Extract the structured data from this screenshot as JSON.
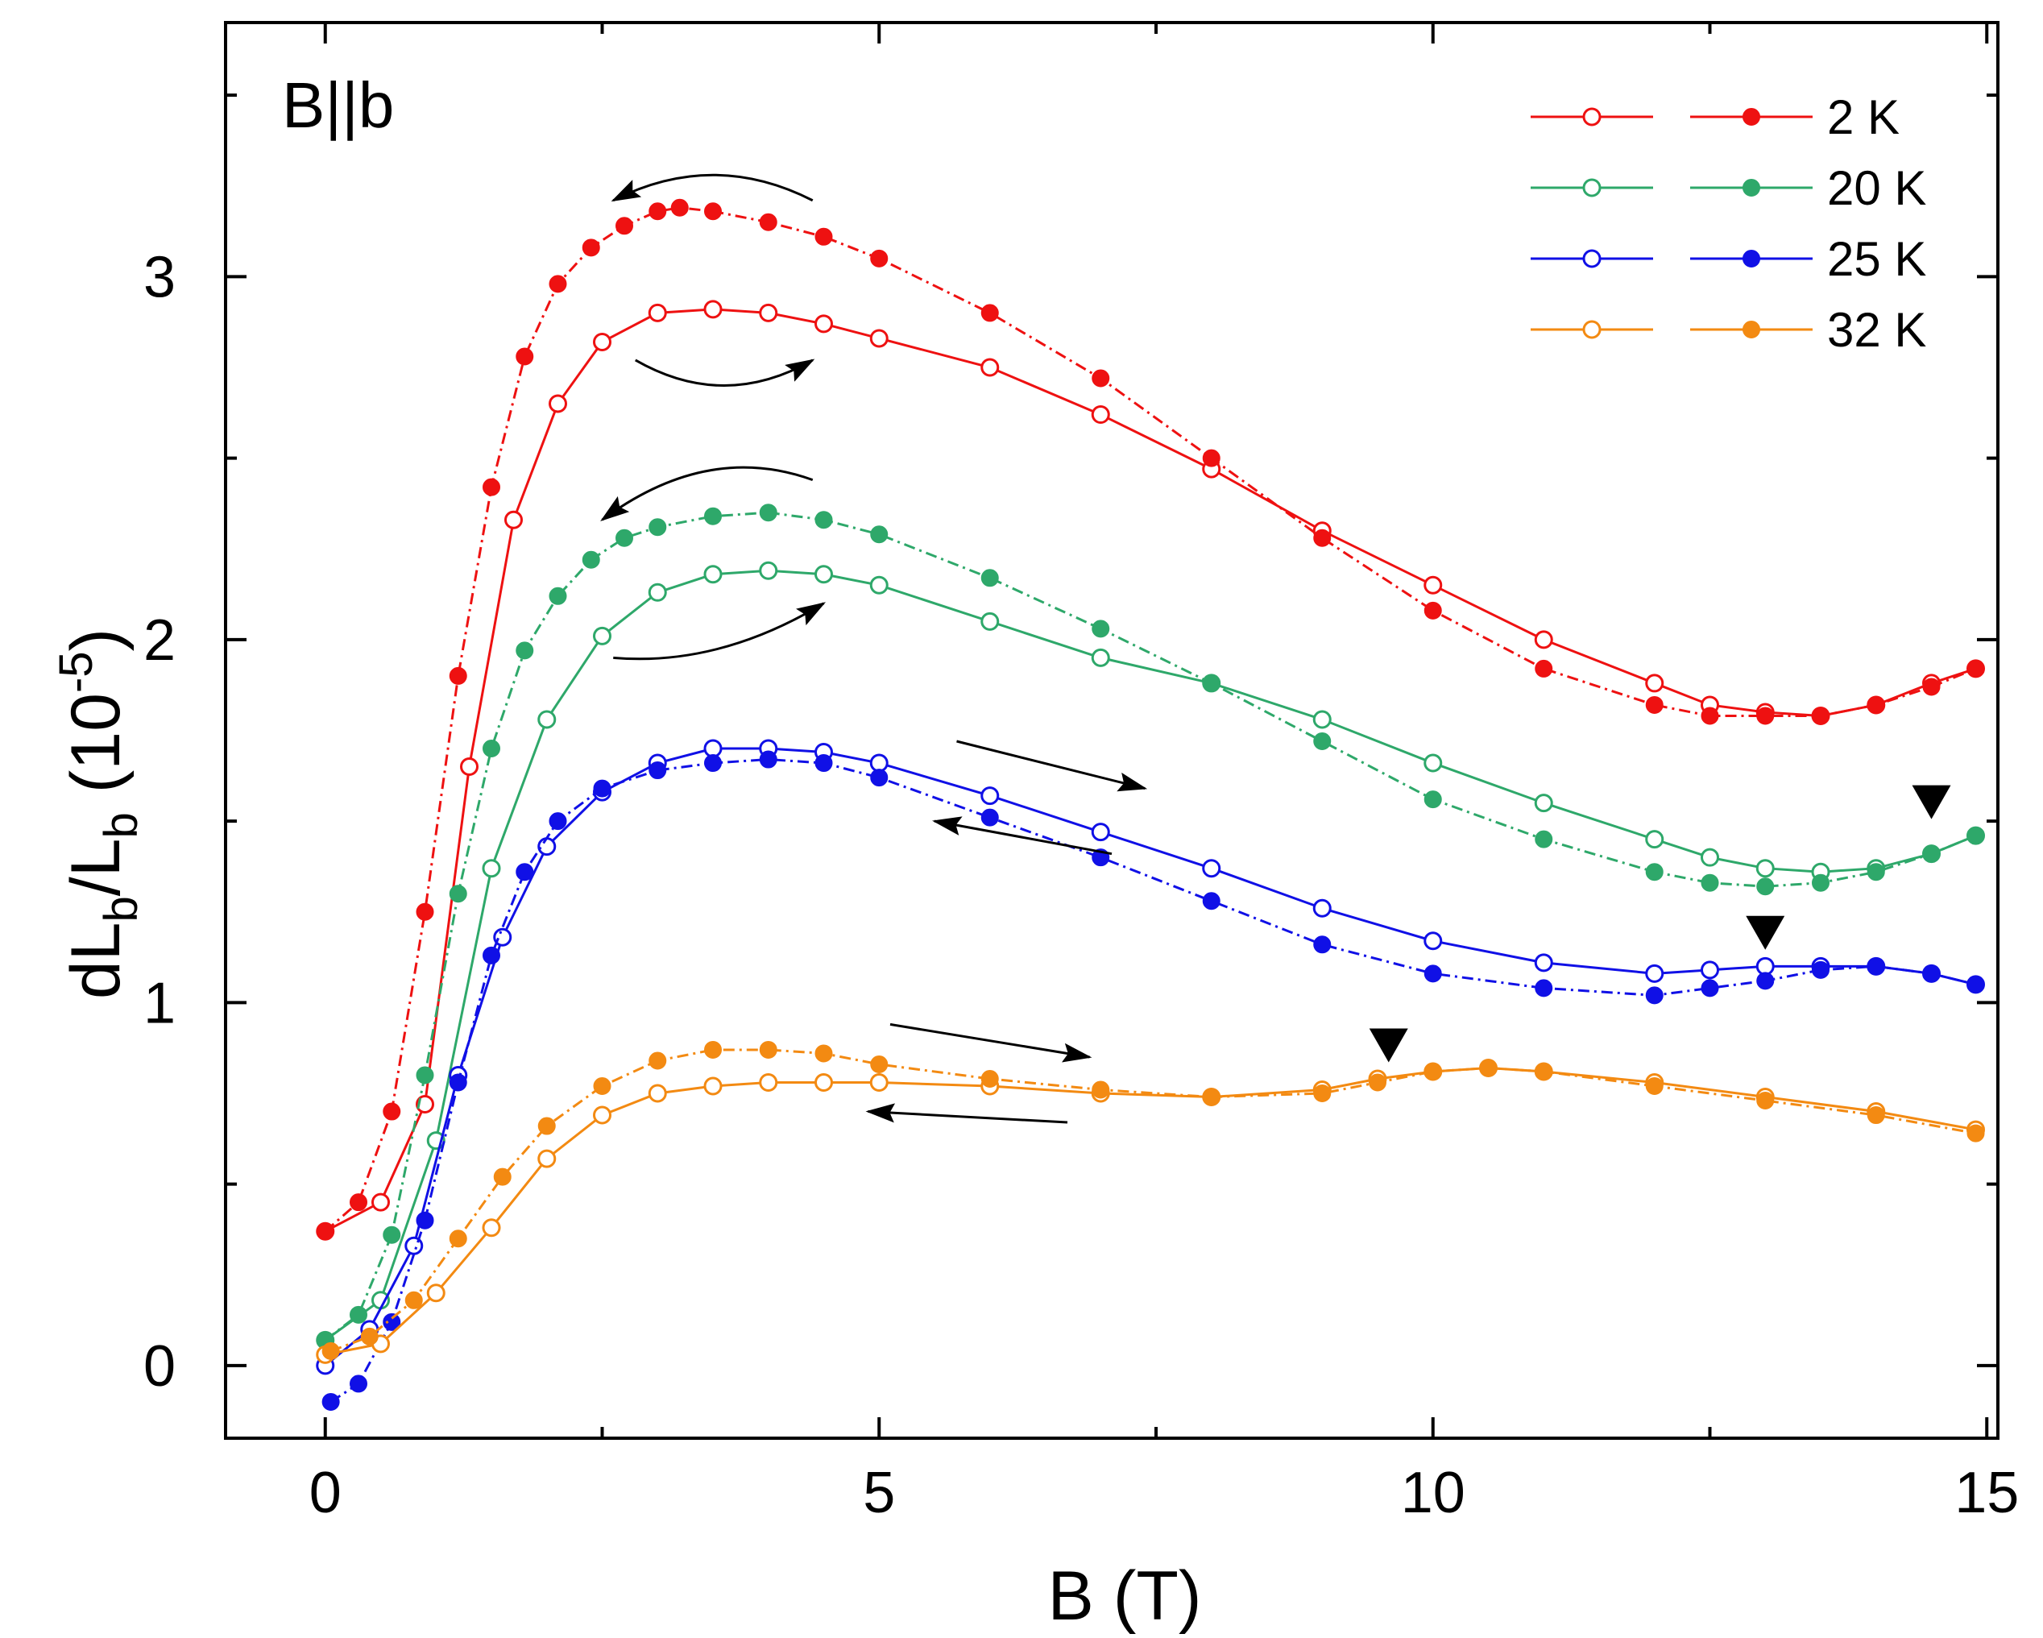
{
  "chart_data": {
    "type": "scatter",
    "title": "",
    "panel_label": "B||b",
    "xlabel": "B (T)",
    "ylabel": {
      "base": "dL",
      "sub1": "b",
      "mid": "/L",
      "sub2": "b",
      "unit_prefix": " (10",
      "unit_exp": "-5",
      "unit_suffix": ")"
    },
    "xlim": [
      -0.9,
      15.1
    ],
    "ylim": [
      -0.2,
      3.7
    ],
    "x_ticks": [
      0,
      5,
      10,
      15
    ],
    "x_tick_labels": [
      "0",
      "5",
      "10",
      "15"
    ],
    "y_ticks": [
      0,
      1,
      2,
      3
    ],
    "y_tick_labels": [
      "0",
      "1",
      "2",
      "3"
    ],
    "grid": false,
    "legend_position": "top-right",
    "series": [
      {
        "name": "2 K",
        "color": "#ee1111",
        "sweep": "up",
        "marker": "open",
        "x": [
          0,
          0.5,
          0.9,
          1.3,
          1.7,
          2.1,
          2.5,
          3,
          3.5,
          4,
          4.5,
          5,
          6,
          7,
          8,
          9,
          10,
          11,
          12,
          12.5,
          13,
          13.5,
          14,
          14.5,
          14.9
        ],
        "y": [
          0.37,
          0.45,
          0.72,
          1.65,
          2.33,
          2.65,
          2.82,
          2.9,
          2.91,
          2.9,
          2.87,
          2.83,
          2.75,
          2.62,
          2.47,
          2.3,
          2.15,
          2.0,
          1.88,
          1.82,
          1.8,
          1.79,
          1.82,
          1.88,
          1.92
        ]
      },
      {
        "name": "2 K",
        "color": "#ee1111",
        "sweep": "down",
        "marker": "filled",
        "x": [
          0,
          0.3,
          0.6,
          0.9,
          1.2,
          1.5,
          1.8,
          2.1,
          2.4,
          2.7,
          3,
          3.2,
          3.5,
          4,
          4.5,
          5,
          6,
          7,
          8,
          9,
          10,
          11,
          12,
          12.5,
          13,
          13.5,
          14,
          14.5,
          14.9
        ],
        "y": [
          0.37,
          0.45,
          0.7,
          1.25,
          1.9,
          2.42,
          2.78,
          2.98,
          3.08,
          3.14,
          3.18,
          3.19,
          3.18,
          3.15,
          3.11,
          3.05,
          2.9,
          2.72,
          2.5,
          2.28,
          2.08,
          1.92,
          1.82,
          1.79,
          1.79,
          1.79,
          1.82,
          1.87,
          1.92
        ]
      },
      {
        "name": "20 K",
        "color": "#2ea86a",
        "sweep": "up",
        "marker": "open",
        "x": [
          0,
          0.5,
          1,
          1.5,
          2,
          2.5,
          3,
          3.5,
          4,
          4.5,
          5,
          6,
          7,
          8,
          9,
          10,
          11,
          12,
          12.5,
          13,
          13.5,
          14,
          14.5,
          14.9
        ],
        "y": [
          0.07,
          0.18,
          0.62,
          1.37,
          1.78,
          2.01,
          2.13,
          2.18,
          2.19,
          2.18,
          2.15,
          2.05,
          1.95,
          1.88,
          1.78,
          1.66,
          1.55,
          1.45,
          1.4,
          1.37,
          1.36,
          1.37,
          1.41,
          1.46
        ]
      },
      {
        "name": "20 K",
        "color": "#2ea86a",
        "sweep": "down",
        "marker": "filled",
        "x": [
          0,
          0.3,
          0.6,
          0.9,
          1.2,
          1.5,
          1.8,
          2.1,
          2.4,
          2.7,
          3,
          3.5,
          4,
          4.5,
          5,
          6,
          7,
          8,
          9,
          10,
          11,
          12,
          12.5,
          13,
          13.5,
          14,
          14.5,
          14.9
        ],
        "y": [
          0.07,
          0.14,
          0.36,
          0.8,
          1.3,
          1.7,
          1.97,
          2.12,
          2.22,
          2.28,
          2.31,
          2.34,
          2.35,
          2.33,
          2.29,
          2.17,
          2.03,
          1.88,
          1.72,
          1.56,
          1.45,
          1.36,
          1.33,
          1.32,
          1.33,
          1.36,
          1.41,
          1.46
        ]
      },
      {
        "name": "25 K",
        "color": "#1010e6",
        "sweep": "up",
        "marker": "open",
        "x": [
          0,
          0.4,
          0.8,
          1.2,
          1.6,
          2,
          2.5,
          3,
          3.5,
          4,
          4.5,
          5,
          6,
          7,
          8,
          9,
          10,
          11,
          12,
          12.5,
          13,
          13.5,
          14,
          14.5,
          14.9
        ],
        "y": [
          0.0,
          0.1,
          0.33,
          0.8,
          1.18,
          1.43,
          1.58,
          1.66,
          1.7,
          1.7,
          1.69,
          1.66,
          1.57,
          1.47,
          1.37,
          1.26,
          1.17,
          1.11,
          1.08,
          1.09,
          1.1,
          1.1,
          1.1,
          1.08,
          1.05
        ]
      },
      {
        "name": "25 K",
        "color": "#1010e6",
        "sweep": "down",
        "marker": "filled",
        "x": [
          0.05,
          0.3,
          0.6,
          0.9,
          1.2,
          1.5,
          1.8,
          2.1,
          2.5,
          3,
          3.5,
          4,
          4.5,
          5,
          6,
          7,
          8,
          9,
          10,
          11,
          12,
          12.5,
          13,
          13.5,
          14,
          14.5,
          14.9
        ],
        "y": [
          -0.1,
          -0.05,
          0.12,
          0.4,
          0.78,
          1.13,
          1.36,
          1.5,
          1.59,
          1.64,
          1.66,
          1.67,
          1.66,
          1.62,
          1.51,
          1.4,
          1.28,
          1.16,
          1.08,
          1.04,
          1.02,
          1.04,
          1.06,
          1.09,
          1.1,
          1.08,
          1.05
        ]
      },
      {
        "name": "32 K",
        "color": "#f38a12",
        "sweep": "up",
        "marker": "open",
        "x": [
          0,
          0.5,
          1,
          1.5,
          2,
          2.5,
          3,
          3.5,
          4,
          4.5,
          5,
          6,
          7,
          8,
          9,
          9.5,
          10,
          10.5,
          11,
          12,
          13,
          14,
          14.9
        ],
        "y": [
          0.03,
          0.06,
          0.2,
          0.38,
          0.57,
          0.69,
          0.75,
          0.77,
          0.78,
          0.78,
          0.78,
          0.77,
          0.75,
          0.74,
          0.76,
          0.79,
          0.81,
          0.82,
          0.81,
          0.78,
          0.74,
          0.7,
          0.65
        ]
      },
      {
        "name": "32 K",
        "color": "#f38a12",
        "sweep": "down",
        "marker": "filled",
        "x": [
          0.05,
          0.4,
          0.8,
          1.2,
          1.6,
          2,
          2.5,
          3,
          3.5,
          4,
          4.5,
          5,
          6,
          7,
          8,
          9,
          9.5,
          10,
          10.5,
          11,
          12,
          13,
          14,
          14.9
        ],
        "y": [
          0.04,
          0.08,
          0.18,
          0.35,
          0.52,
          0.66,
          0.77,
          0.84,
          0.87,
          0.87,
          0.86,
          0.83,
          0.79,
          0.76,
          0.74,
          0.75,
          0.78,
          0.81,
          0.82,
          0.81,
          0.77,
          0.73,
          0.69,
          0.64
        ]
      }
    ],
    "annotations": {
      "arrows": [
        {
          "from": [
            4.4,
            3.21
          ],
          "to": [
            2.6,
            3.21
          ],
          "bow": 0.07,
          "direction": "down-sweep"
        },
        {
          "from": [
            2.8,
            2.77
          ],
          "to": [
            4.4,
            2.77
          ],
          "bow": -0.07,
          "direction": "up-sweep"
        },
        {
          "from": [
            4.4,
            2.44
          ],
          "to": [
            2.5,
            2.33
          ],
          "bow": 0.08,
          "direction": "down-sweep"
        },
        {
          "from": [
            2.6,
            1.95
          ],
          "to": [
            4.5,
            2.1
          ],
          "bow": -0.05,
          "direction": "up-sweep"
        },
        {
          "from": [
            5.7,
            1.72
          ],
          "to": [
            7.4,
            1.59
          ],
          "bow": 0,
          "direction": "up-sweep"
        },
        {
          "from": [
            7.1,
            1.41
          ],
          "to": [
            5.5,
            1.5
          ],
          "bow": 0,
          "direction": "down-sweep"
        },
        {
          "from": [
            5.1,
            0.94
          ],
          "to": [
            6.9,
            0.85
          ],
          "bow": 0,
          "direction": "up-sweep"
        },
        {
          "from": [
            6.7,
            0.67
          ],
          "to": [
            4.9,
            0.7
          ],
          "bow": 0,
          "direction": "down-sweep"
        }
      ],
      "triangles": [
        {
          "x": 14.5,
          "y": 1.55
        },
        {
          "x": 13.0,
          "y": 1.19
        },
        {
          "x": 9.6,
          "y": 0.88
        }
      ]
    }
  }
}
